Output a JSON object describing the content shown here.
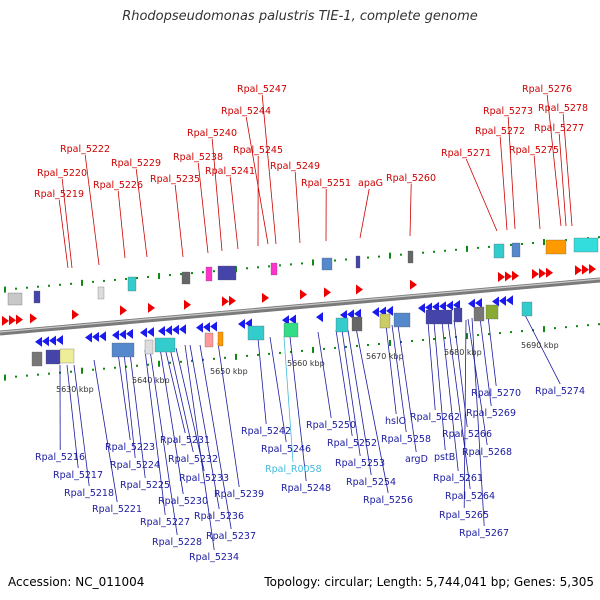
{
  "title": "Rhodopseudomonas palustris TIE-1, complete genome",
  "footer": {
    "accession": "Accession: NC_011004",
    "summary": "Topology: circular; Length: 5,744,041 bp; Genes: 5,305"
  },
  "colors": {
    "top_label": "#cc0000",
    "bottom_label": "#1a1aa0",
    "rna_label": "#44bbdd",
    "forward_gene": "#ee0000",
    "reverse_gene": "#1a1aee",
    "backbone": "#888888",
    "tick": "#118811"
  },
  "ruler": {
    "labels": [
      "5630 kbp",
      "5640 kbp",
      "5650 kbp",
      "5660 kbp",
      "5670 kbp",
      "5680 kbp",
      "5690 kbp"
    ]
  },
  "top_labels": [
    "Rpal_5219",
    "Rpal_5220",
    "Rpal_5222",
    "Rpal_5226",
    "Rpal_5229",
    "Rpal_5235",
    "Rpal_5238",
    "Rpal_5240",
    "Rpal_5241",
    "Rpal_5247",
    "Rpal_5244",
    "Rpal_5245",
    "Rpal_5249",
    "Rpal_5251",
    "apaG",
    "Rpal_5260",
    "Rpal_5271",
    "Rpal_5272",
    "Rpal_5273",
    "Rpal_5275",
    "Rpal_5276",
    "Rpal_5278",
    "Rpal_5277"
  ],
  "bottom_labels": [
    "Rpal_5216",
    "Rpal_5217",
    "Rpal_5218",
    "Rpal_5221",
    "Rpal_5223",
    "Rpal_5224",
    "Rpal_5225",
    "Rpal_5227",
    "Rpal_5228",
    "Rpal_5230",
    "Rpal_5231",
    "Rpal_5232",
    "Rpal_5233",
    "Rpal_5234",
    "Rpal_5236",
    "Rpal_5237",
    "Rpal_5239",
    "Rpal_5242",
    "Rpal_5246",
    "Rpal_R0058",
    "Rpal_5248",
    "Rpal_5250",
    "Rpal_5252",
    "Rpal_5253",
    "Rpal_5254",
    "Rpal_5256",
    "hslO",
    "Rpal_5258",
    "argD",
    "Rpal_5262",
    "pstB",
    "Rpal_5261",
    "Rpal_5264",
    "Rpal_5266",
    "Rpal_5265",
    "Rpal_5268",
    "Rpal_5267",
    "Rpal_5269",
    "Rpal_5270",
    "Rpal_5274"
  ]
}
